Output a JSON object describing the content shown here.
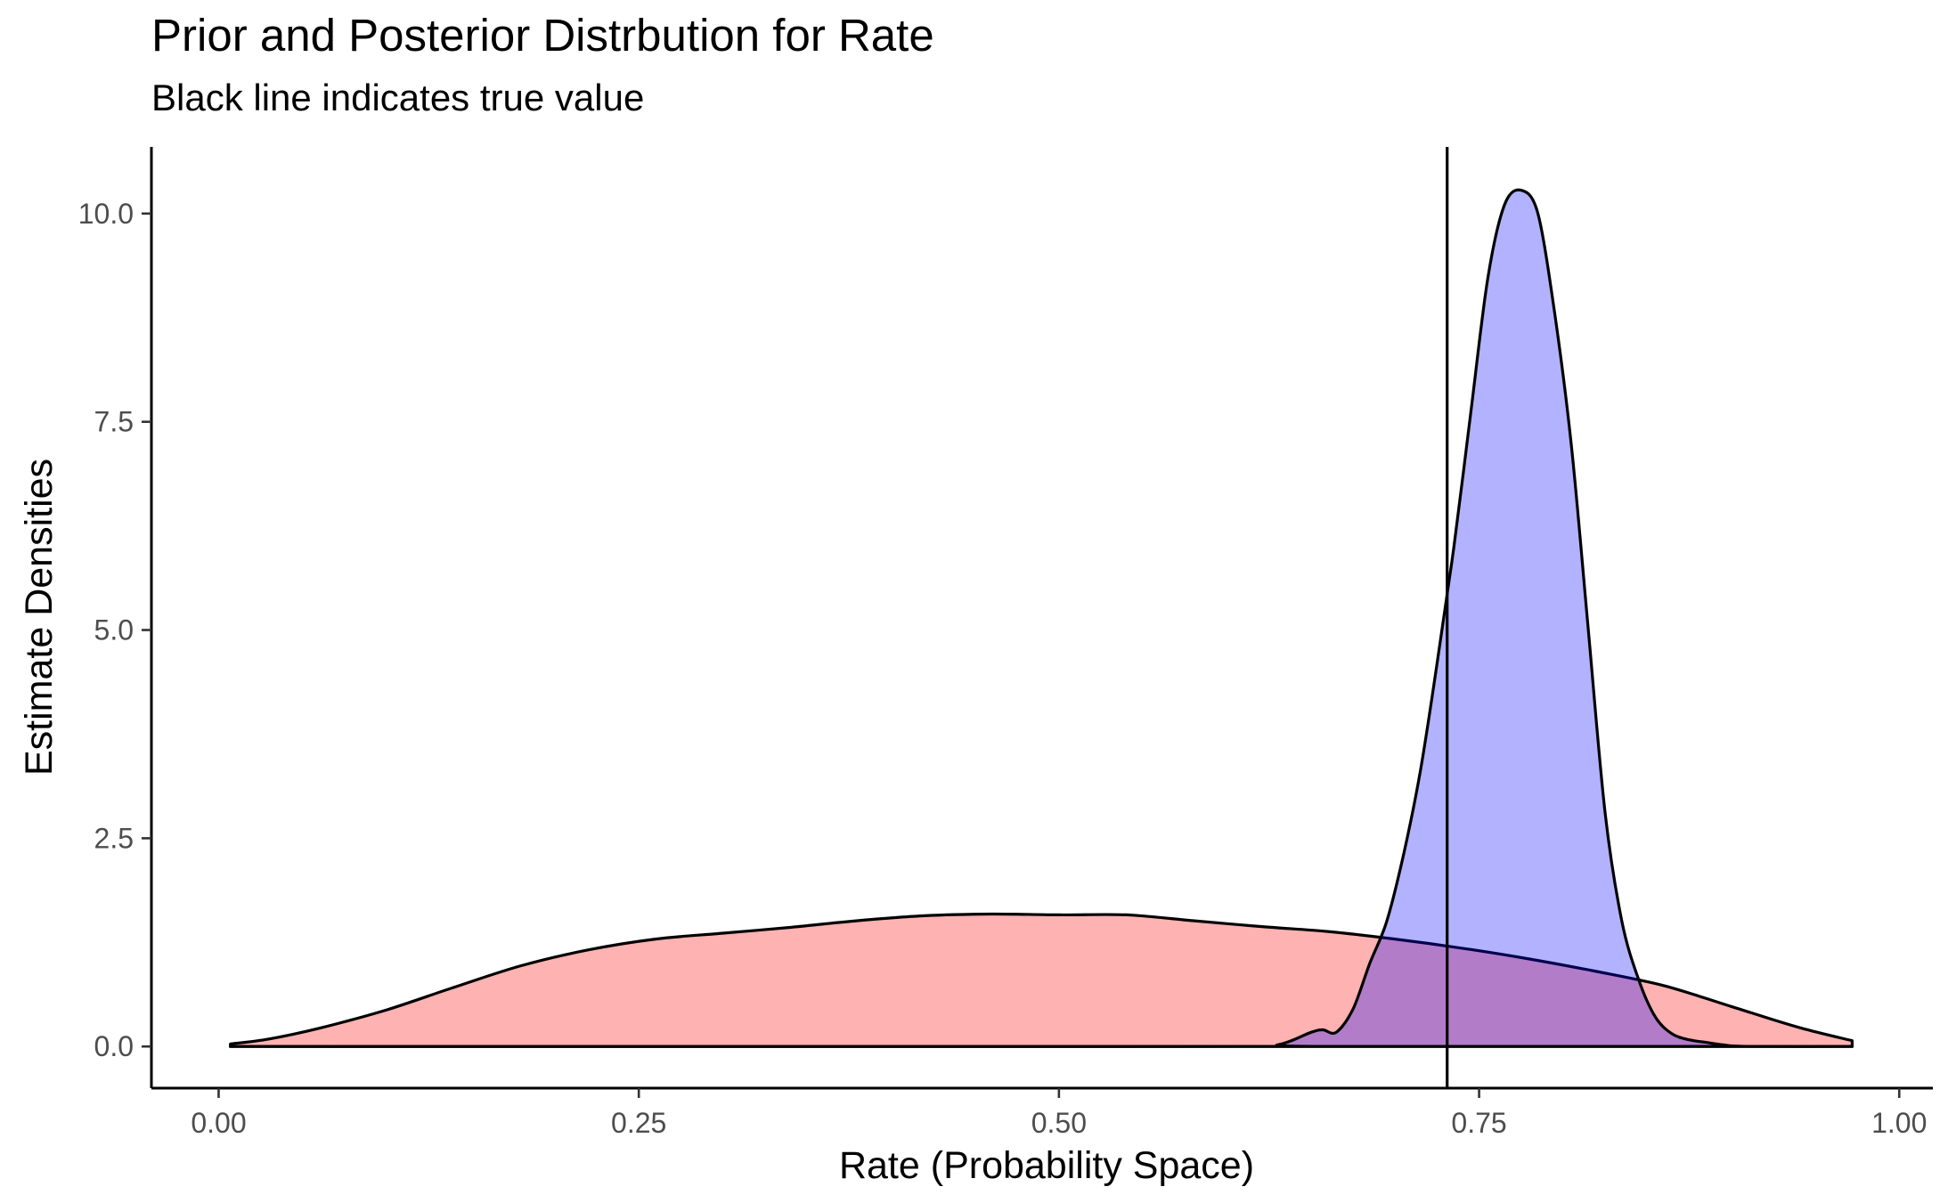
{
  "chart_data": {
    "type": "area",
    "title": "Prior and Posterior Distrbution for Rate",
    "subtitle": "Black line indicates true value",
    "xlabel": "Rate (Probability Space)",
    "ylabel": "Estimate Densities",
    "xlim": [
      -0.04,
      1.02
    ],
    "ylim": [
      -0.5,
      10.8
    ],
    "x_ticks": [
      0,
      0.25,
      0.5,
      0.75,
      1
    ],
    "x_tick_labels": [
      "0.00",
      "0.25",
      "0.50",
      "0.75",
      "1.00"
    ],
    "y_ticks": [
      0,
      2.5,
      5,
      7.5,
      10
    ],
    "y_tick_labels": [
      "0.0",
      "2.5",
      "5.0",
      "7.5",
      "10.0"
    ],
    "grid": false,
    "reference_line": {
      "x": 0.731,
      "color": "#000000"
    },
    "series": [
      {
        "fill": "#ff0000",
        "opacity": 0.3,
        "x": [
          0.007,
          0.03,
          0.06,
          0.1,
          0.14,
          0.18,
          0.22,
          0.26,
          0.3,
          0.34,
          0.38,
          0.42,
          0.46,
          0.5,
          0.54,
          0.58,
          0.62,
          0.66,
          0.7,
          0.74,
          0.78,
          0.82,
          0.86,
          0.9,
          0.94,
          0.972
        ],
        "values": [
          0.03,
          0.09,
          0.22,
          0.44,
          0.71,
          0.97,
          1.16,
          1.29,
          1.36,
          1.43,
          1.51,
          1.57,
          1.59,
          1.58,
          1.58,
          1.51,
          1.44,
          1.38,
          1.29,
          1.18,
          1.05,
          0.9,
          0.73,
          0.48,
          0.23,
          0.07
        ]
      },
      {
        "fill": "#0000ff",
        "opacity": 0.3,
        "x": [
          0.007,
          0.6,
          0.63,
          0.65,
          0.657,
          0.665,
          0.675,
          0.685,
          0.695,
          0.705,
          0.715,
          0.725,
          0.735,
          0.745,
          0.755,
          0.765,
          0.775,
          0.785,
          0.795,
          0.805,
          0.815,
          0.825,
          0.835,
          0.845,
          0.855,
          0.865,
          0.875,
          0.885,
          0.895,
          0.91,
          0.972
        ],
        "values": [
          0,
          0,
          0.02,
          0.17,
          0.2,
          0.17,
          0.45,
          1.0,
          1.5,
          2.3,
          3.3,
          4.6,
          6.0,
          7.6,
          9.2,
          10.1,
          10.28,
          10.0,
          8.8,
          7.2,
          5.0,
          2.8,
          1.5,
          0.8,
          0.35,
          0.15,
          0.08,
          0.05,
          0.02,
          0.0,
          0.0
        ]
      }
    ]
  }
}
